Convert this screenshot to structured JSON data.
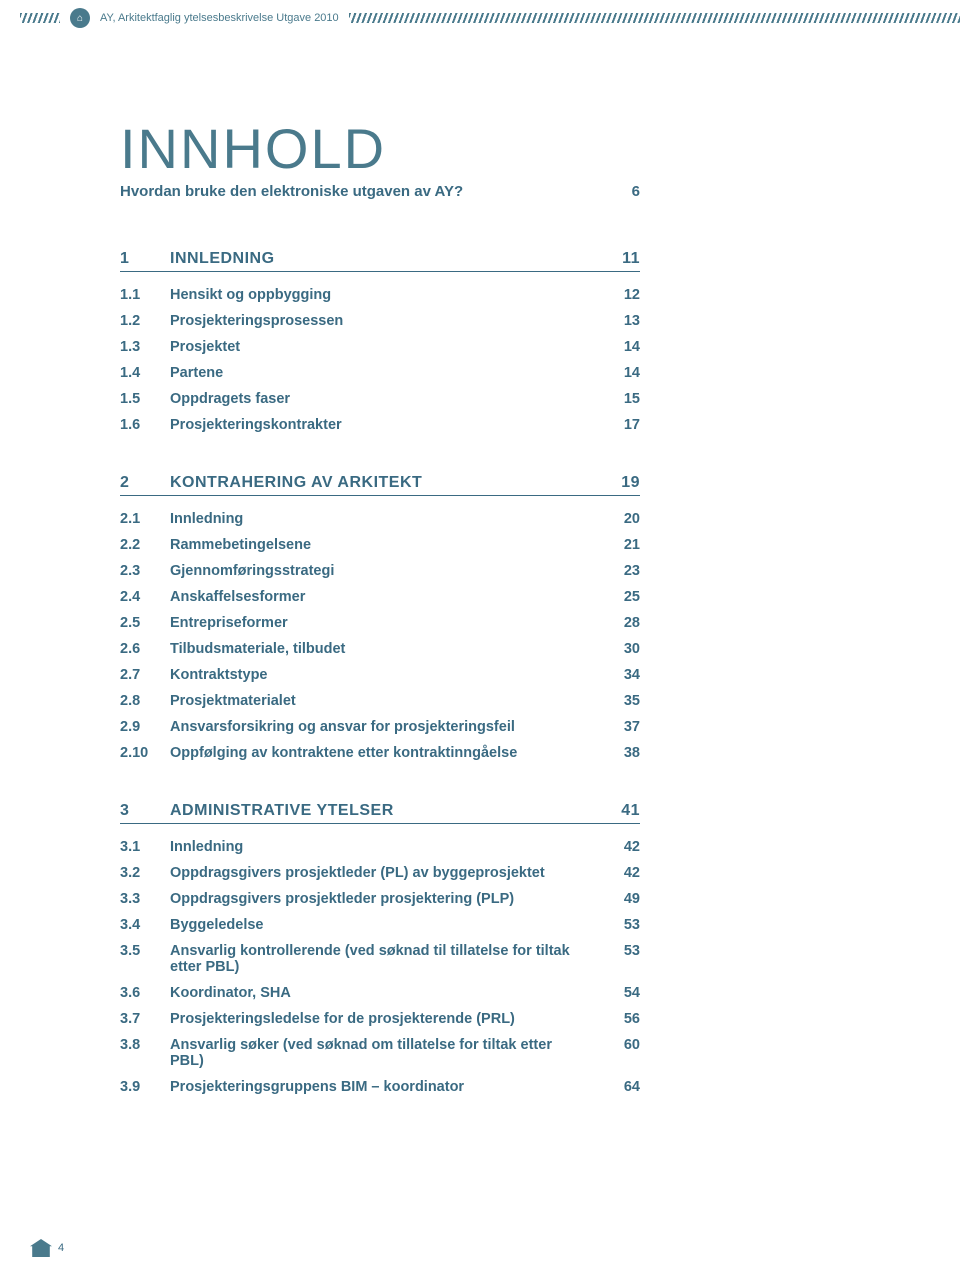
{
  "header": {
    "text": "AY, Arkitektfaglig ytelsesbeskrivelse Utgave 2010"
  },
  "colors": {
    "primary": "#4a7a8c",
    "text": "#3a6a82",
    "background": "#ffffff"
  },
  "title": "INNHOLD",
  "subtitle": {
    "text": "Hvordan bruke den elektroniske utgaven av AY?",
    "page": "6"
  },
  "sections": [
    {
      "num": "1",
      "title": "INNLEDNING",
      "page": "11",
      "items": [
        {
          "num": "1.1",
          "title": "Hensikt og oppbygging",
          "page": "12"
        },
        {
          "num": "1.2",
          "title": "Prosjekteringsprosessen",
          "page": "13"
        },
        {
          "num": "1.3",
          "title": "Prosjektet",
          "page": "14"
        },
        {
          "num": "1.4",
          "title": "Partene",
          "page": "14"
        },
        {
          "num": "1.5",
          "title": "Oppdragets faser",
          "page": "15"
        },
        {
          "num": "1.6",
          "title": "Prosjekteringskontrakter",
          "page": "17"
        }
      ]
    },
    {
      "num": "2",
      "title": "KONTRAHERING AV ARKITEKT",
      "page": "19",
      "items": [
        {
          "num": "2.1",
          "title": "Innledning",
          "page": "20"
        },
        {
          "num": "2.2",
          "title": "Rammebetingelsene",
          "page": "21"
        },
        {
          "num": "2.3",
          "title": "Gjennomføringsstrategi",
          "page": "23"
        },
        {
          "num": "2.4",
          "title": "Anskaffelsesformer",
          "page": "25"
        },
        {
          "num": "2.5",
          "title": "Entrepriseformer",
          "page": "28"
        },
        {
          "num": "2.6",
          "title": "Tilbudsmateriale, tilbudet",
          "page": "30"
        },
        {
          "num": "2.7",
          "title": "Kontraktstype",
          "page": "34"
        },
        {
          "num": "2.8",
          "title": "Prosjektmaterialet",
          "page": "35"
        },
        {
          "num": "2.9",
          "title": "Ansvarsforsikring og ansvar for prosjekteringsfeil",
          "page": "37"
        },
        {
          "num": "2.10",
          "title": "Oppfølging av kontraktene etter kontraktinngåelse",
          "page": "38"
        }
      ]
    },
    {
      "num": "3",
      "title": "ADMINISTRATIVE YTELSER",
      "page": "41",
      "items": [
        {
          "num": "3.1",
          "title": "Innledning",
          "page": "42"
        },
        {
          "num": "3.2",
          "title": "Oppdragsgivers prosjektleder (PL) av byggeprosjektet",
          "page": "42"
        },
        {
          "num": "3.3",
          "title": "Oppdragsgivers prosjektleder prosjektering (PLP)",
          "page": "49"
        },
        {
          "num": "3.4",
          "title": "Byggeledelse",
          "page": "53"
        },
        {
          "num": "3.5",
          "title": "Ansvarlig kontrollerende (ved søknad til tillatelse for tiltak etter PBL)",
          "page": "53"
        },
        {
          "num": "3.6",
          "title": "Koordinator, SHA",
          "page": "54"
        },
        {
          "num": "3.7",
          "title": "Prosjekteringsledelse for de prosjekterende (PRL)",
          "page": "56"
        },
        {
          "num": "3.8",
          "title": "Ansvarlig søker (ved søknad om tillatelse for tiltak etter PBL)",
          "page": "60"
        },
        {
          "num": "3.9",
          "title": "Prosjekteringsgruppens BIM – koordinator",
          "page": "64"
        }
      ]
    }
  ],
  "pageNumber": "4"
}
